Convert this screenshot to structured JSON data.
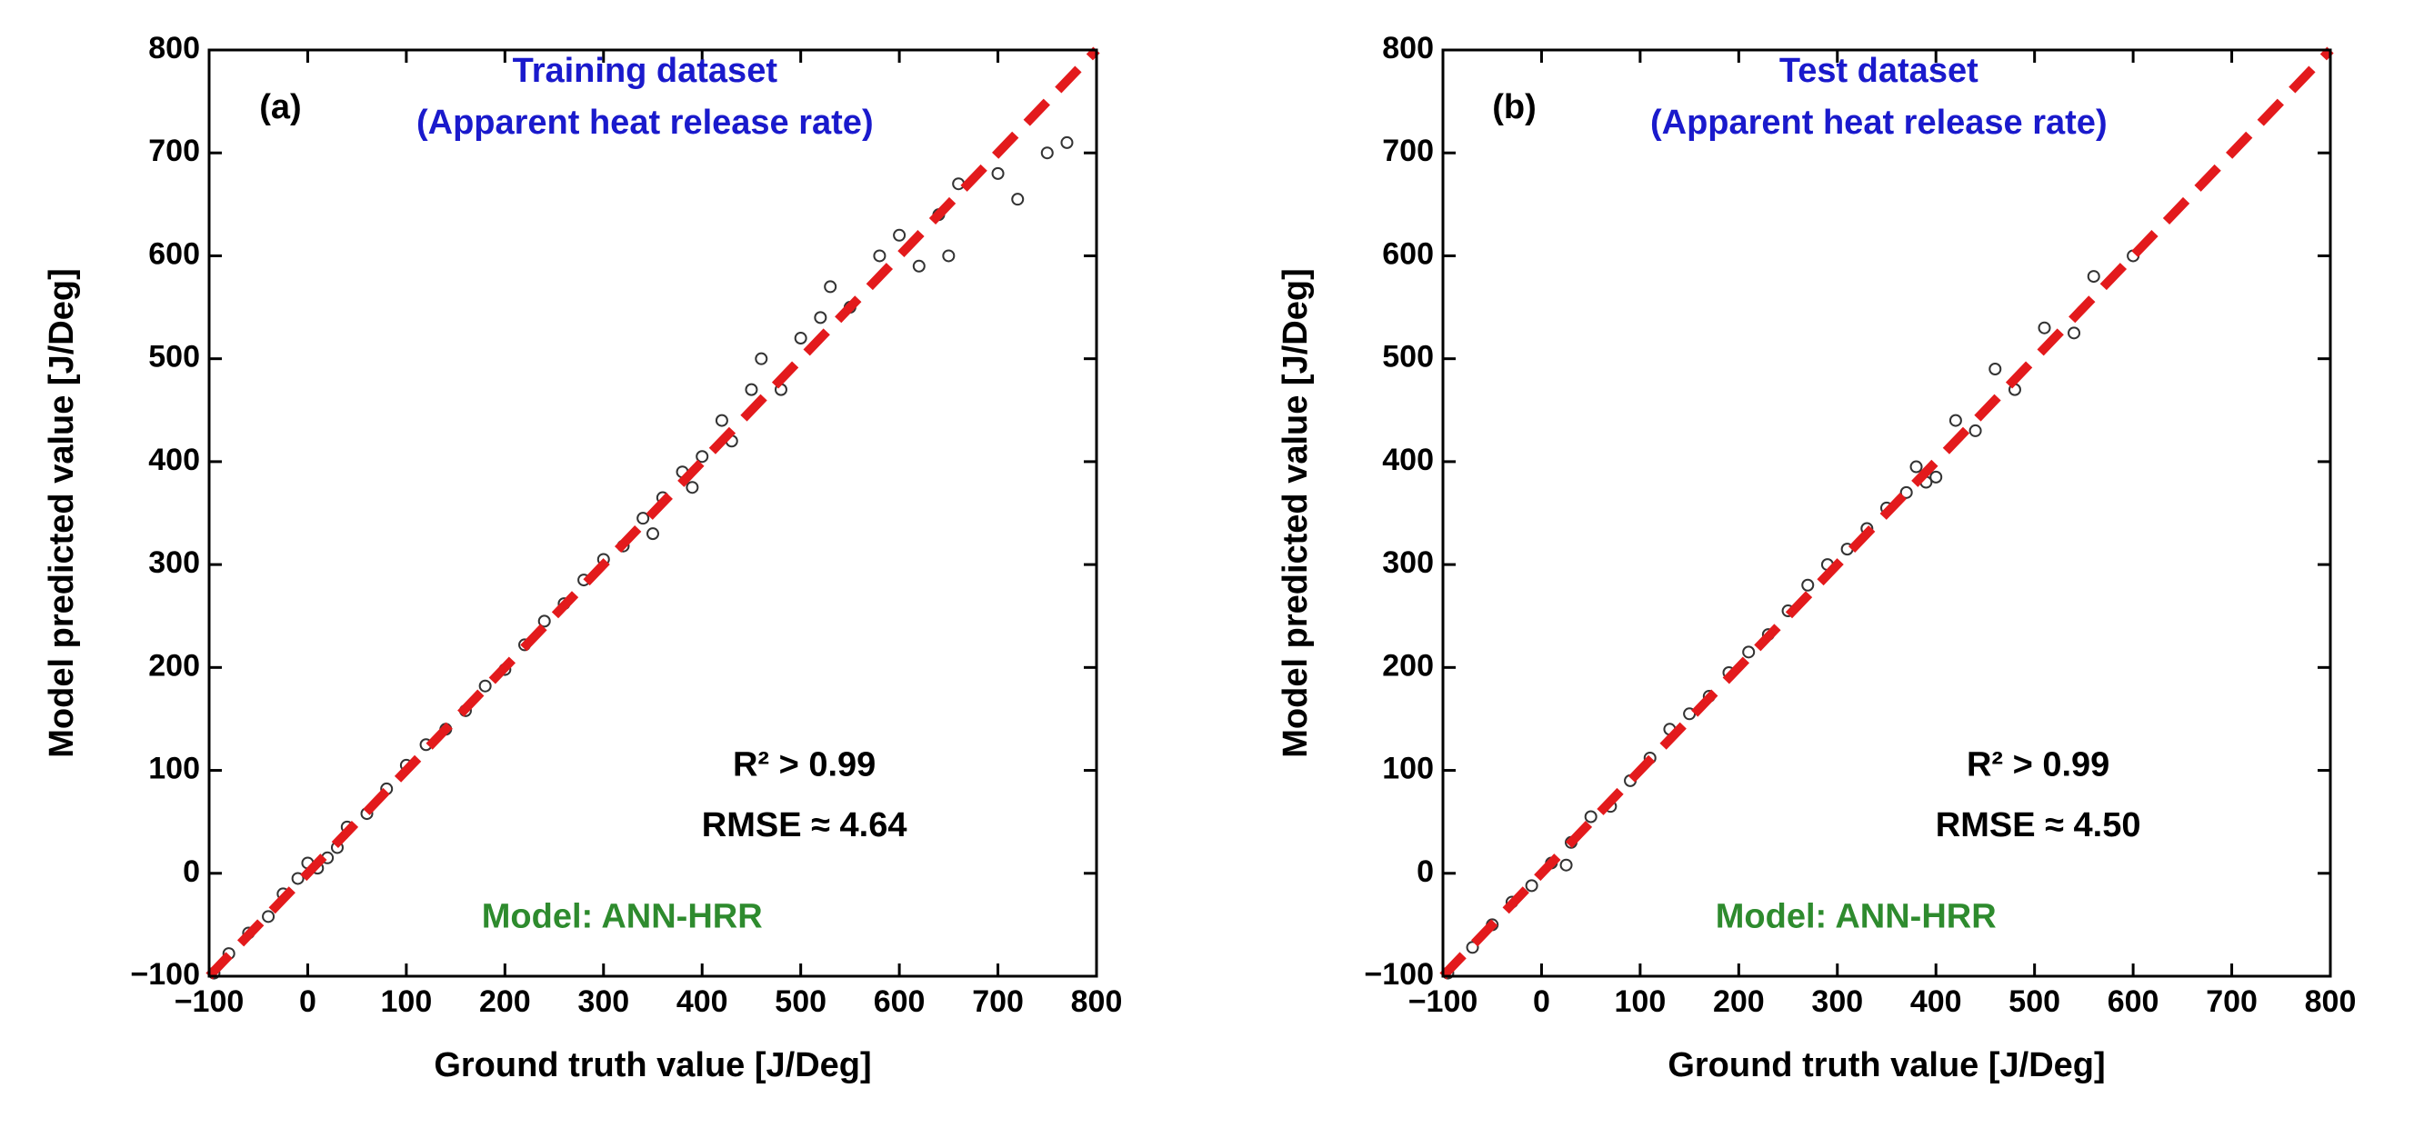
{
  "chart_data": [
    {
      "type": "scatter",
      "xlabel": "Ground truth value [J/Deg]",
      "ylabel": "Model predicted value [J/Deg]",
      "xlim": [
        -100,
        800
      ],
      "ylim": [
        -100,
        800
      ],
      "xticks": [
        {
          "value": -100,
          "label": "−100"
        },
        0,
        100,
        200,
        300,
        400,
        500,
        600,
        700,
        800
      ],
      "yticks": [
        {
          "value": -100,
          "label": "−100"
        },
        0,
        100,
        200,
        300,
        400,
        500,
        600,
        700,
        800
      ],
      "color": "#333333",
      "annotations": [
        {
          "text": "(a)",
          "color": "#000000"
        },
        {
          "text": "Training dataset",
          "color": "#1a1acc"
        },
        {
          "text": "(Apparent heat release rate)",
          "color": "#1a1acc"
        },
        {
          "text": "R² > 0.99",
          "color": "#000000"
        },
        {
          "text": "RMSE ≈ 4.64",
          "color": "#000000"
        },
        {
          "text": "Model: ANN-HRR",
          "color": "#2e8b2e"
        }
      ],
      "reference_line": {
        "x": [
          -100,
          800
        ],
        "y": [
          -100,
          800
        ],
        "color": "#e31a1c"
      },
      "x": [
        -95,
        -80,
        -60,
        -40,
        -25,
        -10,
        0,
        10,
        20,
        30,
        40,
        60,
        80,
        100,
        120,
        140,
        160,
        180,
        200,
        220,
        240,
        260,
        280,
        300,
        320,
        340,
        360,
        380,
        400,
        390,
        350,
        420,
        430,
        450,
        460,
        480,
        500,
        520,
        530,
        550,
        580,
        600,
        620,
        640,
        650,
        660,
        700,
        720,
        750,
        770
      ],
      "values": [
        -97,
        -78,
        -58,
        -42,
        -20,
        -5,
        10,
        5,
        15,
        25,
        45,
        58,
        82,
        105,
        125,
        140,
        158,
        182,
        198,
        222,
        245,
        262,
        285,
        305,
        318,
        345,
        365,
        390,
        405,
        375,
        330,
        440,
        420,
        470,
        500,
        470,
        520,
        540,
        570,
        550,
        600,
        620,
        590,
        640,
        600,
        670,
        680,
        655,
        700,
        710
      ]
    },
    {
      "type": "scatter",
      "xlabel": "Ground truth value [J/Deg]",
      "ylabel": "Model predicted value [J/Deg]",
      "xlim": [
        -100,
        800
      ],
      "ylim": [
        -100,
        800
      ],
      "xticks": [
        {
          "value": -100,
          "label": "−100"
        },
        0,
        100,
        200,
        300,
        400,
        500,
        600,
        700,
        800
      ],
      "yticks": [
        {
          "value": -100,
          "label": "−100"
        },
        0,
        100,
        200,
        300,
        400,
        500,
        600,
        700,
        800
      ],
      "color": "#333333",
      "annotations": [
        {
          "text": "(b)",
          "color": "#000000"
        },
        {
          "text": "Test dataset",
          "color": "#1a1acc"
        },
        {
          "text": "(Apparent heat release rate)",
          "color": "#1a1acc"
        },
        {
          "text": "R² > 0.99",
          "color": "#000000"
        },
        {
          "text": "RMSE ≈ 4.50",
          "color": "#000000"
        },
        {
          "text": "Model: ANN-HRR",
          "color": "#2e8b2e"
        }
      ],
      "reference_line": {
        "x": [
          -100,
          800
        ],
        "y": [
          -100,
          800
        ],
        "color": "#e31a1c"
      },
      "x": [
        -95,
        -70,
        -50,
        -30,
        -10,
        10,
        25,
        30,
        50,
        70,
        90,
        110,
        130,
        150,
        170,
        190,
        210,
        230,
        250,
        270,
        290,
        310,
        330,
        350,
        370,
        390,
        400,
        380,
        420,
        440,
        460,
        480,
        510,
        540,
        560,
        600
      ],
      "values": [
        -97,
        -72,
        -50,
        -28,
        -12,
        10,
        8,
        30,
        55,
        65,
        90,
        112,
        140,
        155,
        172,
        195,
        215,
        232,
        255,
        280,
        300,
        315,
        335,
        355,
        370,
        380,
        385,
        395,
        440,
        430,
        490,
        470,
        530,
        525,
        580,
        600
      ]
    }
  ]
}
